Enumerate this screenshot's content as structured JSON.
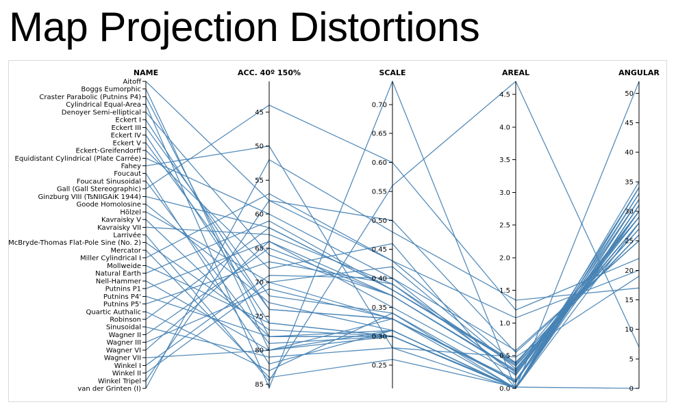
{
  "page": {
    "title": "Map Projection Distortions"
  },
  "style": {
    "line_color": "#4682b4",
    "axis_color": "#000000",
    "frame_color": "#d9d9d9"
  },
  "chart_data": {
    "type": "parallel-coordinates",
    "title": "Map Projection Distortions",
    "grid": false,
    "dimensions": [
      {
        "key": "name",
        "label": "NAME",
        "kind": "categorical"
      },
      {
        "key": "acc",
        "label": "ACC. 40º 150%",
        "kind": "numeric",
        "range": [
          40.5,
          85.6
        ],
        "inverted": true,
        "ticks": [
          45,
          50,
          55,
          60,
          65,
          70,
          75,
          80,
          85
        ]
      },
      {
        "key": "scale",
        "label": "SCALE",
        "kind": "numeric",
        "range": [
          0.21,
          0.74
        ],
        "inverted": false,
        "ticks": [
          "0.25",
          "0.30",
          "0.35",
          "0.40",
          "0.45",
          "0.50",
          "0.55",
          "0.60",
          "0.65",
          "0.70"
        ]
      },
      {
        "key": "areal",
        "label": "AREAL",
        "kind": "numeric",
        "range": [
          0,
          4.7
        ],
        "inverted": false,
        "tick_values": [
          0,
          0.5,
          1.0,
          1.5,
          2.0,
          2.5,
          3.0,
          3.5,
          4.0,
          4.5
        ],
        "tick_labels": [
          "0.0",
          "0.5",
          "1.0",
          "1.5",
          "2.0",
          "2.5",
          "3.0",
          "3.5",
          "4.0",
          "4.5"
        ]
      },
      {
        "key": "angular",
        "label": "ANGULAR",
        "kind": "numeric",
        "range": [
          0,
          52
        ],
        "inverted": false,
        "ticks": [
          0,
          5,
          10,
          15,
          20,
          25,
          30,
          35,
          40,
          45,
          50
        ]
      }
    ],
    "projections": [
      {
        "name": "Aitoff",
        "acc": 58,
        "scale": 0.43,
        "areal": 0.38,
        "angular": 29
      },
      {
        "name": "Boggs Eumorphic",
        "acc": 80,
        "scale": 0.31,
        "areal": 0,
        "angular": 31
      },
      {
        "name": "Craster Parabolic (Putnins P4)",
        "acc": 78,
        "scale": 0.3,
        "areal": 0,
        "angular": 32
      },
      {
        "name": "Cylindrical Equal-Area",
        "acc": 85.5,
        "scale": 0.74,
        "areal": 0,
        "angular": 52
      },
      {
        "name": "Denoyer Semi-elliptical",
        "acc": 66,
        "scale": 0.37,
        "areal": 0.28,
        "angular": 30
      },
      {
        "name": "Eckert I",
        "acc": 74,
        "scale": 0.33,
        "areal": 0.1,
        "angular": 34
      },
      {
        "name": "Eckert III",
        "acc": 72,
        "scale": 0.34,
        "areal": 0.09,
        "angular": 33
      },
      {
        "name": "Eckert IV",
        "acc": 76,
        "scale": 0.3,
        "areal": 0,
        "angular": 31
      },
      {
        "name": "Eckert V",
        "acc": 74,
        "scale": 0.33,
        "areal": 0.11,
        "angular": 32
      },
      {
        "name": "Eckert-Greifendorff",
        "acc": 68,
        "scale": 0.46,
        "areal": 0,
        "angular": 28
      },
      {
        "name": "Equidistant Cylindrical (Plate Carrée)",
        "acc": 60,
        "scale": 0.4,
        "areal": 0.58,
        "angular": 25
      },
      {
        "name": "Fahey",
        "acc": 50,
        "scale": 0.28,
        "areal": 0.48,
        "angular": 19
      },
      {
        "name": "Foucaut",
        "acc": 82,
        "scale": 0.31,
        "areal": 0,
        "angular": 31
      },
      {
        "name": "Foucaut Sinusoidal",
        "acc": 79,
        "scale": 0.3,
        "areal": 0,
        "angular": 33
      },
      {
        "name": "Gall (Gall Stereographic)",
        "acc": 44,
        "scale": 0.6,
        "areal": 1.2,
        "angular": 22
      },
      {
        "name": "Ginzburg VIII (TsNIIGAiK 1944)",
        "acc": 62,
        "scale": 0.38,
        "areal": 0.4,
        "angular": 26
      },
      {
        "name": "Goode Homolosine",
        "acc": 73,
        "scale": 0.31,
        "areal": 0,
        "angular": 34
      },
      {
        "name": "Hölzel",
        "acc": 70,
        "scale": 0.33,
        "areal": 0.1,
        "angular": 30
      },
      {
        "name": "Kavraisky V",
        "acc": 78,
        "scale": 0.3,
        "areal": 0,
        "angular": 31
      },
      {
        "name": "Kavraisky VII",
        "acc": 63,
        "scale": 0.39,
        "areal": 0.34,
        "angular": 27
      },
      {
        "name": "Larrivée",
        "acc": 84.5,
        "scale": 0.56,
        "areal": 4.7,
        "angular": 7
      },
      {
        "name": "McBryde-Thomas Flat-Pole Sine (No. 2)",
        "acc": 77,
        "scale": 0.3,
        "areal": 0,
        "angular": 30
      },
      {
        "name": "Mercator",
        "acc": 84,
        "scale": 0.26,
        "areal": 0.02,
        "angular": 0
      },
      {
        "name": "Miller Cylindrical I",
        "acc": 57,
        "scale": 0.43,
        "areal": 1.08,
        "angular": 20
      },
      {
        "name": "Mollweide",
        "acc": 76,
        "scale": 0.3,
        "areal": 0,
        "angular": 32
      },
      {
        "name": "Natural Earth",
        "acc": 61,
        "scale": 0.38,
        "areal": 0.36,
        "angular": 26
      },
      {
        "name": "Nell-Hammer",
        "acc": 80,
        "scale": 0.33,
        "areal": 0,
        "angular": 35
      },
      {
        "name": "Putnins P1",
        "acc": 64,
        "scale": 0.37,
        "areal": 0.28,
        "angular": 28
      },
      {
        "name": "Putnins P4'",
        "acc": 78,
        "scale": 0.31,
        "areal": 0,
        "angular": 31
      },
      {
        "name": "Putnins P5'",
        "acc": 67,
        "scale": 0.39,
        "areal": 0.24,
        "angular": 29
      },
      {
        "name": "Quartic Authalic",
        "acc": 83,
        "scale": 0.34,
        "areal": 0,
        "angular": 32
      },
      {
        "name": "Robinson",
        "acc": 62,
        "scale": 0.38,
        "areal": 0.38,
        "angular": 27
      },
      {
        "name": "Sinusoidal",
        "acc": 81,
        "scale": 0.28,
        "areal": 0,
        "angular": 34
      },
      {
        "name": "Wagner II",
        "acc": 65,
        "scale": 0.37,
        "areal": 0.26,
        "angular": 28
      },
      {
        "name": "Wagner III",
        "acc": 71,
        "scale": 0.33,
        "areal": 0.13,
        "angular": 30
      },
      {
        "name": "Wagner VI",
        "acc": 64,
        "scale": 0.35,
        "areal": 0.22,
        "angular": 29
      },
      {
        "name": "Wagner VII",
        "acc": 80,
        "scale": 0.3,
        "areal": 0.02,
        "angular": 31
      },
      {
        "name": "Winkel I",
        "acc": 69,
        "scale": 0.4,
        "areal": 0.2,
        "angular": 30
      },
      {
        "name": "Winkel II",
        "acc": 70,
        "scale": 0.42,
        "areal": 0.3,
        "angular": 28
      },
      {
        "name": "Winkel Tripel",
        "acc": 58,
        "scale": 0.5,
        "areal": 0.55,
        "angular": 25
      },
      {
        "name": "van der Grinten (I)",
        "acc": 52,
        "scale": 0.48,
        "areal": 1.35,
        "angular": 17
      }
    ]
  }
}
